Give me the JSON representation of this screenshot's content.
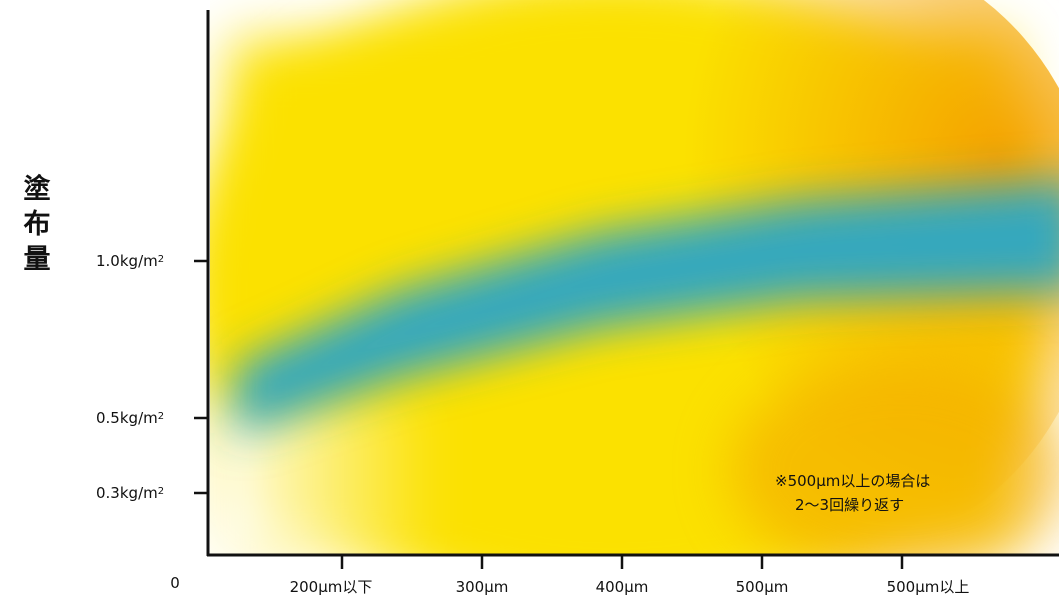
{
  "y_axis": {
    "title": "塗布量",
    "ticks": [
      {
        "text": "1.0kg/m",
        "sup": "2"
      },
      {
        "text": "0.5kg/m",
        "sup": "2"
      },
      {
        "text": "0.3kg/m",
        "sup": "2"
      }
    ]
  },
  "x_axis": {
    "origin": "0",
    "ticks": [
      "200μm以下",
      "300μm",
      "400μm",
      "500μm",
      "500μm以上"
    ]
  },
  "note": [
    "※500μm以上の場合は",
    "2〜3回繰り返す"
  ]
}
